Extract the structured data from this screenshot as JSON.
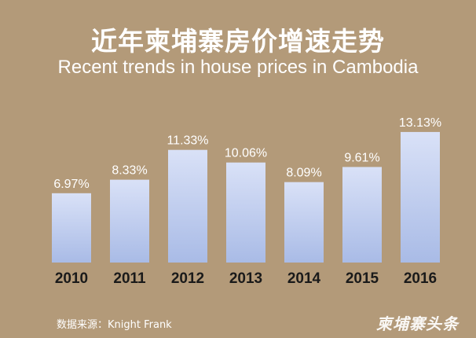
{
  "chart_data": {
    "type": "bar",
    "title": "近年柬埔寨房价增速走势",
    "subtitle": "Recent trends in house prices in Cambodia",
    "categories": [
      "2010",
      "2011",
      "2012",
      "2013",
      "2014",
      "2015",
      "2016"
    ],
    "values": [
      6.97,
      8.33,
      11.33,
      10.06,
      8.09,
      9.61,
      13.13
    ],
    "value_labels": [
      "6.97%",
      "8.33%",
      "11.33%",
      "10.06%",
      "8.09%",
      "9.61%",
      "13.13%"
    ],
    "xlabel": "",
    "ylabel": "",
    "grid": false,
    "legend": "none",
    "colors": {
      "background": "#b39a79",
      "bar_top": "#d9e1f7",
      "bar_bottom": "#a9bbe6",
      "text": "#ffffff",
      "category_text": "#1a1a1a"
    }
  },
  "footer": {
    "source": "数据来源：Knight Frank",
    "watermark": "柬埔寨头条"
  }
}
